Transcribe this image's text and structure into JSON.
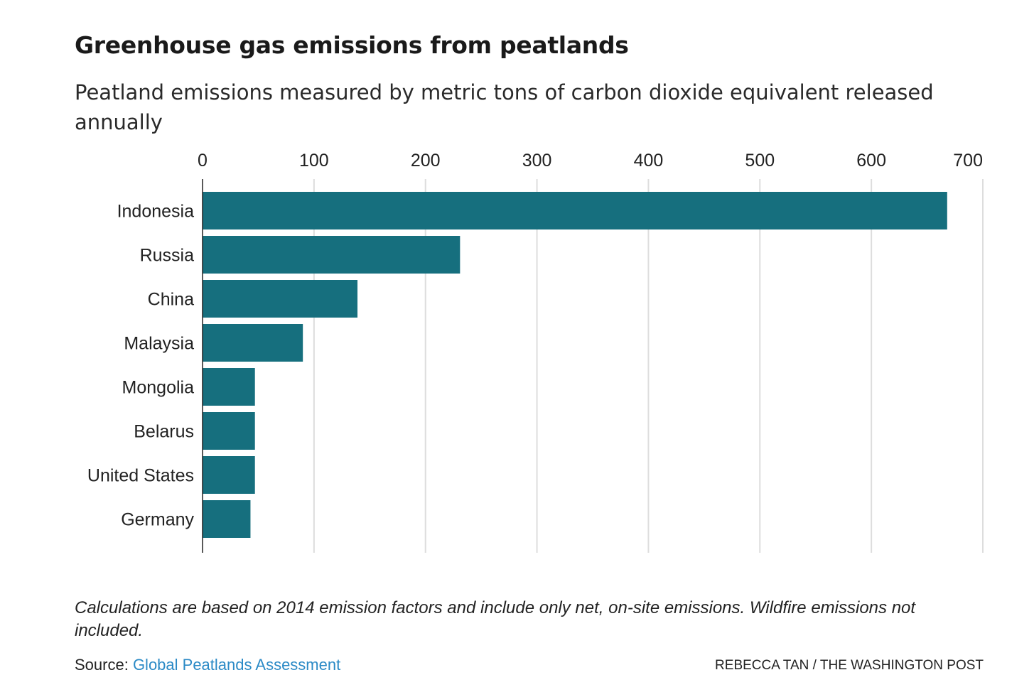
{
  "header": {
    "title": "Greenhouse gas emissions from peatlands",
    "subtitle": "Peatland emissions measured by metric tons of carbon dioxide equivalent released annually"
  },
  "chart_data": {
    "type": "bar",
    "orientation": "horizontal",
    "categories": [
      "Indonesia",
      "Russia",
      "China",
      "Malaysia",
      "Mongolia",
      "Belarus",
      "United States",
      "Germany"
    ],
    "values": [
      668,
      231,
      139,
      90,
      47,
      47,
      47,
      43
    ],
    "xticks": [
      "0",
      "100",
      "200",
      "300",
      "400",
      "500",
      "600",
      "700"
    ],
    "xlim": [
      0,
      700
    ],
    "xaxis_position": "top",
    "grid": true,
    "bar_color": "#166f7e",
    "grid_color": "#dddddd",
    "title": "Greenhouse gas emissions from peatlands",
    "subtitle": "Peatland emissions measured by metric tons of carbon dioxide equivalent released annually",
    "xlabel": "",
    "ylabel": ""
  },
  "footer": {
    "note": "Calculations are based on 2014 emission factors and include only net, on-site emissions. Wildfire emissions not included.",
    "source_prefix": "Source: ",
    "source_link": "Global Peatlands Assessment",
    "credit": "REBECCA TAN / THE WASHINGTON POST"
  },
  "colors": {
    "link": "#2b8ac6",
    "bar": "#166f7e"
  }
}
